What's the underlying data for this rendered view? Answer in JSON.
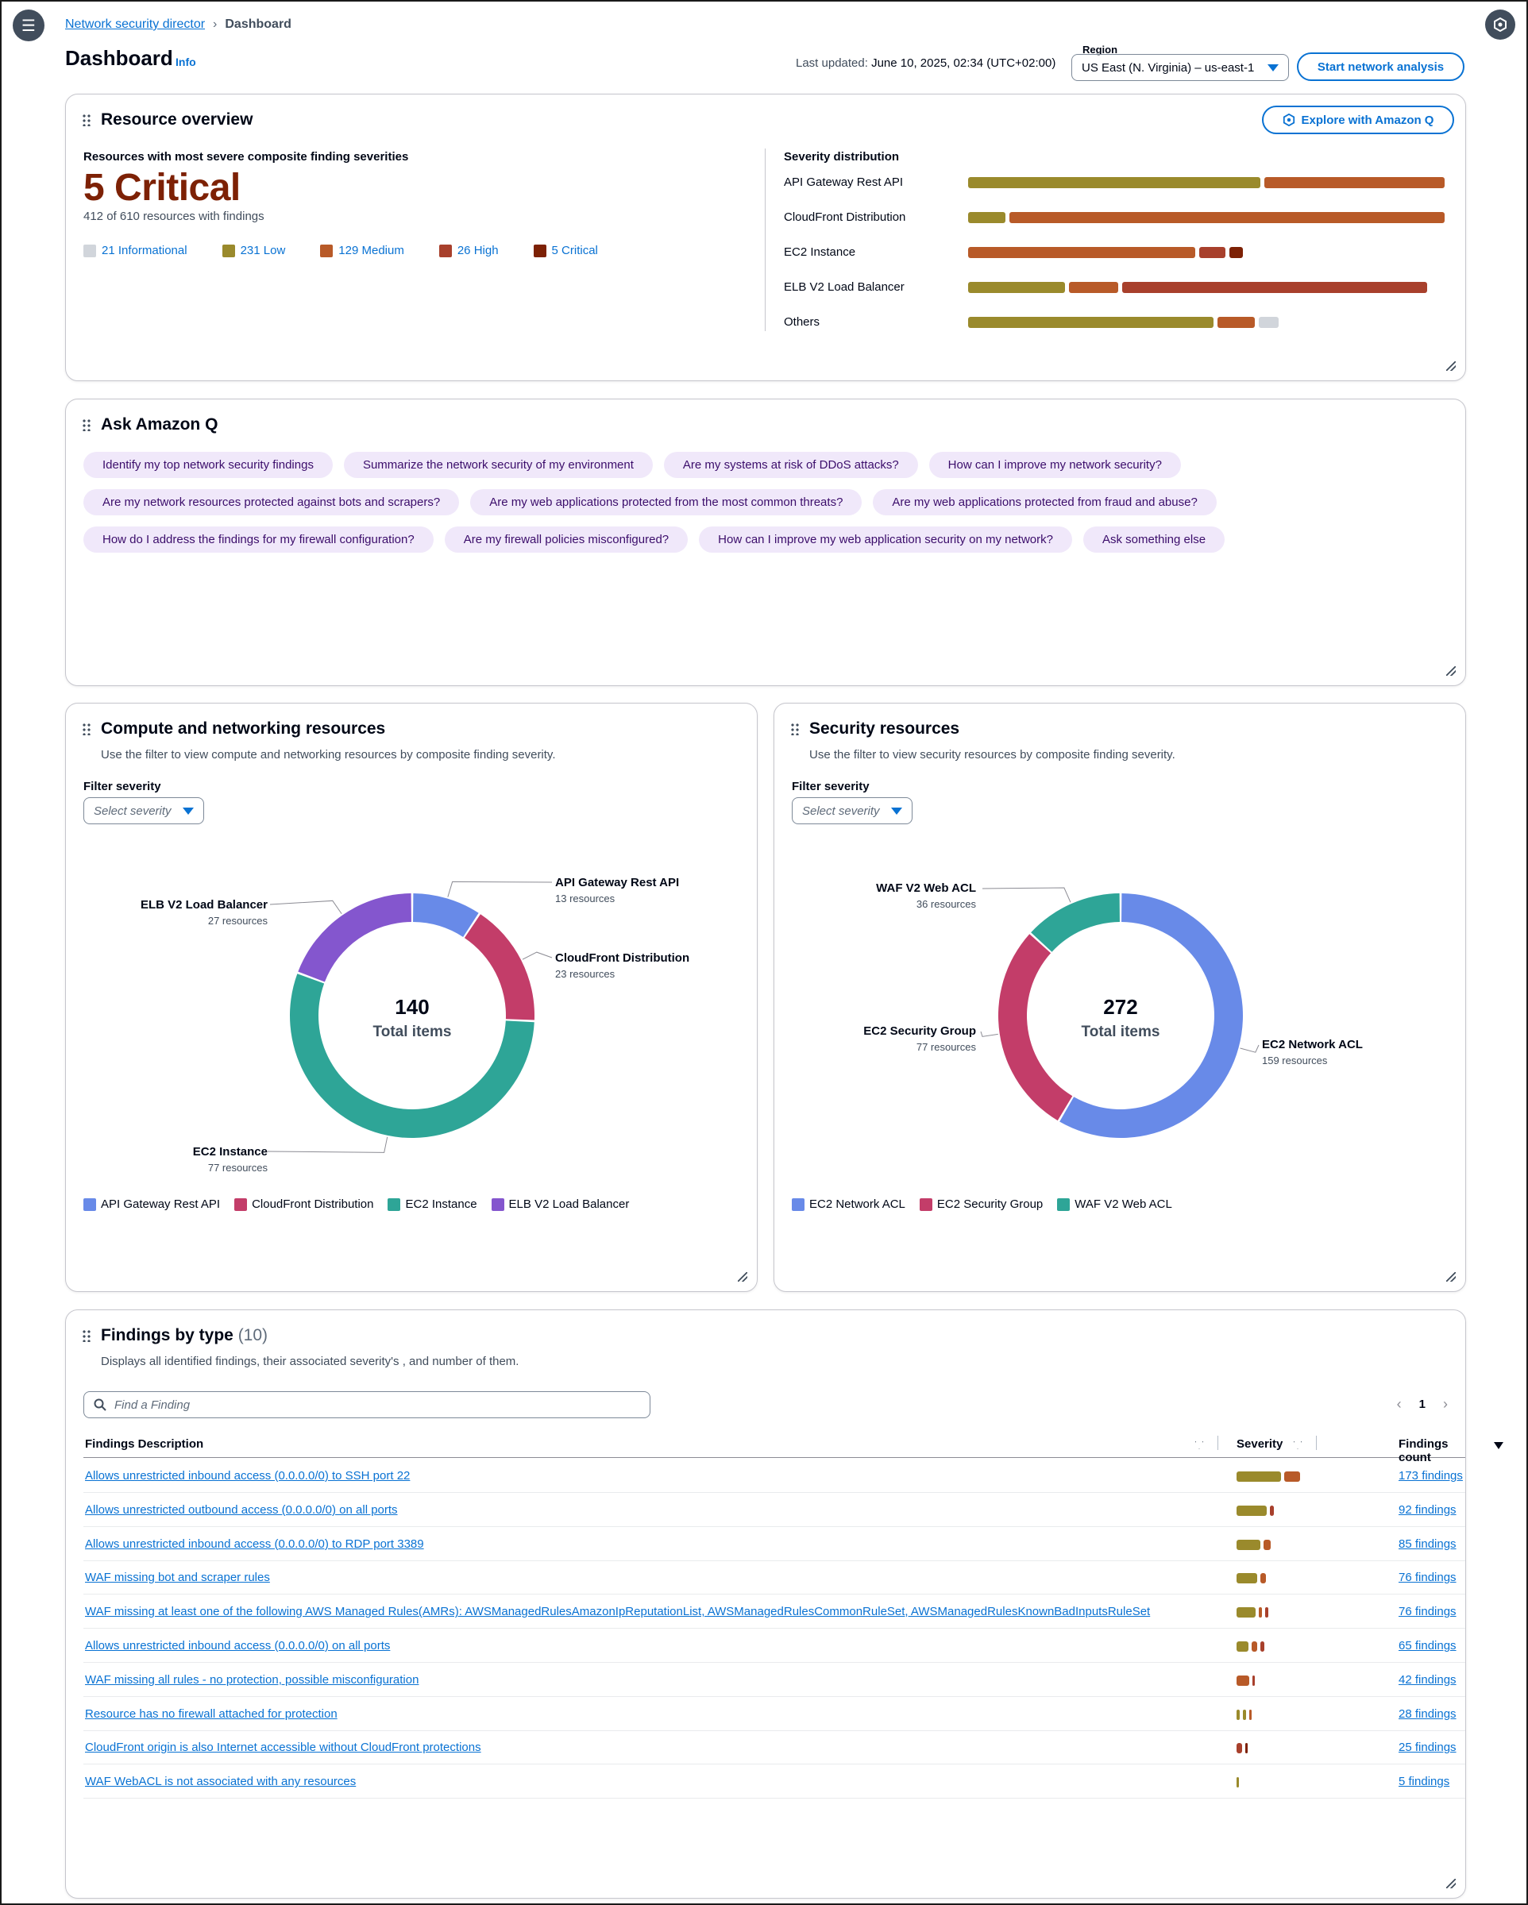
{
  "breadcrumb": {
    "parent": "Network security director",
    "current": "Dashboard"
  },
  "page": {
    "title": "Dashboard",
    "info": "Info"
  },
  "header": {
    "last_updated_label": "Last updated:",
    "last_updated_value": "June 10, 2025, 02:34 (UTC+02:00)",
    "region_label": "Region",
    "region_value": "US East (N. Virginia) – us-east-1",
    "start_button": "Start network analysis"
  },
  "colors": {
    "informational": "#d1d5db",
    "low": "#9a8a2c",
    "medium": "#b85a28",
    "high": "#a8402c",
    "critical": "#7d2105",
    "blue": "#688ae8",
    "pink": "#c33d69",
    "teal": "#2ea597",
    "purple": "#8456ce"
  },
  "resource_overview": {
    "title": "Resource overview",
    "explore_button": "Explore with Amazon Q",
    "subtitle": "Resources with most severe composite finding severities",
    "big_value": "5 Critical",
    "count_text": "412 of 610 resources with findings",
    "legend": [
      {
        "label": "21 Informational",
        "color": "#d1d5db"
      },
      {
        "label": "231 Low",
        "color": "#9a8a2c"
      },
      {
        "label": "129 Medium",
        "color": "#b85a28"
      },
      {
        "label": "26 High",
        "color": "#a8402c"
      },
      {
        "label": "5 Critical",
        "color": "#7d2105"
      }
    ],
    "severity_title": "Severity distribution",
    "severity_rows": [
      {
        "name": "API Gateway Rest API",
        "segments": [
          {
            "level": "low",
            "value": 50
          },
          {
            "level": "medium",
            "value": 31
          }
        ]
      },
      {
        "name": "CloudFront Distribution",
        "segments": [
          {
            "level": "low",
            "value": 7
          },
          {
            "level": "medium",
            "value": 74
          }
        ]
      },
      {
        "name": "EC2 Instance",
        "segments": [
          {
            "level": "medium",
            "value": 39
          },
          {
            "level": "high",
            "value": 5
          },
          {
            "level": "critical",
            "value": 3
          }
        ]
      },
      {
        "name": "ELB V2 Load Balancer",
        "segments": [
          {
            "level": "low",
            "value": 17
          },
          {
            "level": "medium",
            "value": 9
          },
          {
            "level": "high",
            "value": 52
          }
        ]
      },
      {
        "name": "Others",
        "segments": [
          {
            "level": "low",
            "value": 42
          },
          {
            "level": "medium",
            "value": 7
          },
          {
            "level": "informational",
            "value": 4
          }
        ]
      }
    ]
  },
  "ask_q": {
    "title": "Ask Amazon Q",
    "chips": [
      "Identify my top network security findings",
      "Summarize the network security of my environment",
      "Are my systems at risk of DDoS attacks?",
      "How can I improve my network security?",
      "Are my network resources protected against bots and scrapers?",
      "Are my web applications protected from the most common threats?",
      "Are my web applications protected from fraud and abuse?",
      "How do I address the findings for my firewall configuration?",
      "Are my firewall policies misconfigured?",
      "How can I improve my web application security on my network?",
      "Ask something else"
    ]
  },
  "compute": {
    "title": "Compute and networking resources",
    "desc": "Use the filter to view compute and networking resources by composite finding severity.",
    "filter_label": "Filter severity",
    "filter_placeholder": "Select severity",
    "total": "140",
    "total_label": "Total items"
  },
  "security": {
    "title": "Security resources",
    "desc": "Use the filter to view security resources by composite finding severity.",
    "filter_label": "Filter severity",
    "filter_placeholder": "Select severity",
    "total": "272",
    "total_label": "Total items"
  },
  "chart_data": [
    {
      "type": "pie",
      "categories": [
        "API Gateway Rest API",
        "CloudFront Distribution",
        "EC2 Instance",
        "ELB V2 Load Balancer"
      ],
      "values": [
        13,
        23,
        77,
        27
      ],
      "labels": [
        "13 resources",
        "23 resources",
        "77 resources",
        "27 resources"
      ],
      "colors": [
        "#688ae8",
        "#c33d69",
        "#2ea597",
        "#8456ce"
      ],
      "legend": "bottom-left"
    },
    {
      "type": "pie",
      "categories": [
        "EC2 Network ACL",
        "EC2 Security Group",
        "WAF V2 Web ACL"
      ],
      "values": [
        159,
        77,
        36
      ],
      "labels": [
        "159 resources",
        "77 resources",
        "36 resources"
      ],
      "colors": [
        "#688ae8",
        "#c33d69",
        "#2ea597"
      ],
      "legend": "bottom-left"
    }
  ],
  "findings": {
    "title": "Findings by type",
    "count": "(10)",
    "desc": "Displays all identified findings, their associated severity's , and number of them.",
    "search_placeholder": "Find a Finding",
    "page": "1",
    "col_desc": "Findings Description",
    "col_severity": "Severity",
    "col_count": "Findings count",
    "rows": [
      {
        "desc": "Allows unrestricted inbound access (0.0.0.0/0) to SSH port 22",
        "count": "173 findings",
        "segments": [
          {
            "level": "low",
            "value": 110
          },
          {
            "level": "medium",
            "value": 40
          }
        ]
      },
      {
        "desc": "Allows unrestricted outbound access (0.0.0.0/0) on all ports",
        "count": "92 findings",
        "segments": [
          {
            "level": "low",
            "value": 75
          },
          {
            "level": "high",
            "value": 10
          }
        ]
      },
      {
        "desc": "Allows unrestricted inbound access (0.0.0.0/0) to RDP port 3389",
        "count": "85 findings",
        "segments": [
          {
            "level": "low",
            "value": 60
          },
          {
            "level": "medium",
            "value": 17
          }
        ]
      },
      {
        "desc": "WAF missing bot and scraper rules",
        "count": "76 findings",
        "segments": [
          {
            "level": "low",
            "value": 52
          },
          {
            "level": "medium",
            "value": 14
          }
        ]
      },
      {
        "desc": "WAF missing at least one of the following AWS Managed Rules(AMRs): AWSManagedRulesAmazonIpReputationList, AWSManagedRulesCommonRuleSet, AWSManagedRulesKnownBadInputsRuleSet",
        "count": "76 findings",
        "segments": [
          {
            "level": "low",
            "value": 48
          },
          {
            "level": "medium",
            "value": 8
          },
          {
            "level": "high",
            "value": 8
          }
        ]
      },
      {
        "desc": "Allows unrestricted inbound access (0.0.0.0/0) on all ports",
        "count": "65 findings",
        "segments": [
          {
            "level": "low",
            "value": 30
          },
          {
            "level": "medium",
            "value": 14
          },
          {
            "level": "high",
            "value": 10
          }
        ]
      },
      {
        "desc": "WAF missing all rules - no protection, possible misconfiguration",
        "count": "42 findings",
        "segments": [
          {
            "level": "medium",
            "value": 32
          },
          {
            "level": "high",
            "value": 4
          }
        ]
      },
      {
        "desc": "Resource has no firewall attached for protection",
        "count": "28 findings",
        "segments": [
          {
            "level": "low",
            "value": 8
          },
          {
            "level": "low",
            "value": 8
          },
          {
            "level": "medium",
            "value": 6
          }
        ]
      },
      {
        "desc": "CloudFront origin is also Internet accessible without CloudFront protections",
        "count": "25 findings",
        "segments": [
          {
            "level": "high",
            "value": 14
          },
          {
            "level": "critical",
            "value": 6
          }
        ]
      },
      {
        "desc": "WAF WebACL is not associated with any resources",
        "count": "5 findings",
        "segments": [
          {
            "level": "low",
            "value": 4
          }
        ]
      }
    ]
  }
}
